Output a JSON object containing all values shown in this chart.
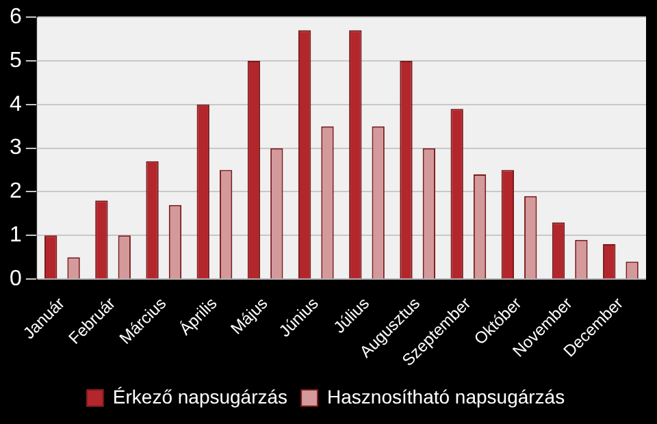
{
  "chart_data": {
    "type": "bar",
    "categories": [
      "Január",
      "Február",
      "Március",
      "Április",
      "Május",
      "Június",
      "Július",
      "Augusztus",
      "Szeptember",
      "Október",
      "November",
      "December"
    ],
    "series": [
      {
        "name": "Érkező napsugárzás",
        "color": "#b3262b",
        "values": [
          1.0,
          1.8,
          2.7,
          4.0,
          5.0,
          5.7,
          5.7,
          5.0,
          3.9,
          2.5,
          1.3,
          0.8
        ]
      },
      {
        "name": "Hasznosítható napsugárzás",
        "color": "#d4999a",
        "values": [
          0.5,
          1.0,
          1.7,
          2.5,
          3.0,
          3.5,
          3.5,
          3.0,
          2.4,
          1.9,
          0.9,
          0.4
        ]
      }
    ],
    "ylim": [
      0,
      6
    ],
    "yticks": [
      0,
      1,
      2,
      3,
      4,
      5,
      6
    ],
    "grid": "y",
    "legend": "bottom"
  }
}
